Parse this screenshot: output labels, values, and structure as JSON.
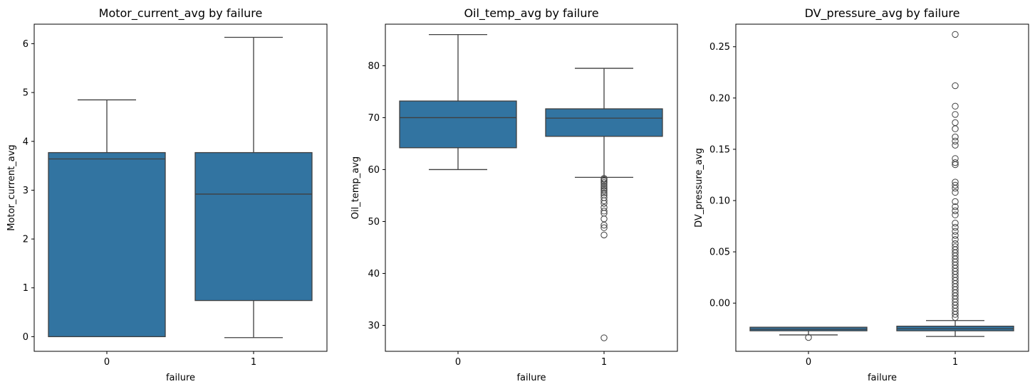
{
  "chart_data": [
    {
      "type": "box",
      "title": "Motor_current_avg by failure",
      "xlabel": "failure",
      "ylabel": "Motor_current_avg",
      "ylim": [
        -0.3,
        6.4
      ],
      "yticks": [
        0,
        1,
        2,
        3,
        4,
        5,
        6
      ],
      "ytick_labels": [
        "0",
        "1",
        "2",
        "3",
        "4",
        "5",
        "6"
      ],
      "categories": [
        "0",
        "1"
      ],
      "color": "#3274a1",
      "boxes": [
        {
          "category": "0",
          "whisker_low": 0.0,
          "q1": 0.0,
          "median": 3.64,
          "q3": 3.77,
          "whisker_high": 4.85,
          "outliers": []
        },
        {
          "category": "1",
          "whisker_low": -0.02,
          "q1": 0.74,
          "median": 2.92,
          "q3": 3.77,
          "whisker_high": 6.13,
          "outliers": []
        }
      ]
    },
    {
      "type": "box",
      "title": "Oil_temp_avg by failure",
      "xlabel": "failure",
      "ylabel": "Oil_temp_avg",
      "ylim": [
        25,
        88
      ],
      "yticks": [
        30,
        40,
        50,
        60,
        70,
        80
      ],
      "ytick_labels": [
        "30",
        "40",
        "50",
        "60",
        "70",
        "80"
      ],
      "categories": [
        "0",
        "1"
      ],
      "color": "#3274a1",
      "boxes": [
        {
          "category": "0",
          "whisker_low": 60.0,
          "q1": 64.2,
          "median": 70.0,
          "q3": 73.2,
          "whisker_high": 86.0,
          "outliers": []
        },
        {
          "category": "1",
          "whisker_low": 58.5,
          "q1": 66.4,
          "median": 69.9,
          "q3": 71.7,
          "whisker_high": 79.5,
          "outliers": [
            58.3,
            58.1,
            57.8,
            57.5,
            57.2,
            56.8,
            56.5,
            56.2,
            55.9,
            55.5,
            55.1,
            54.6,
            54.0,
            53.5,
            52.7,
            52.0,
            51.6,
            50.5,
            49.3,
            48.8,
            47.4,
            27.6
          ]
        }
      ]
    },
    {
      "type": "box",
      "title": "DV_pressure_avg by failure",
      "xlabel": "failure",
      "ylabel": "DV_pressure_avg",
      "ylim": [
        -0.047,
        0.272
      ],
      "yticks": [
        0.0,
        0.05,
        0.1,
        0.15,
        0.2,
        0.25
      ],
      "ytick_labels": [
        "0.00",
        "0.05",
        "0.10",
        "0.15",
        "0.20",
        "0.25"
      ],
      "categories": [
        "0",
        "1"
      ],
      "color": "#3274a1",
      "boxes": [
        {
          "category": "0",
          "whisker_low": -0.031,
          "q1": -0.027,
          "median": -0.0255,
          "q3": -0.0235,
          "whisker_high": -0.0235,
          "outliers": [
            -0.0335
          ]
        },
        {
          "category": "1",
          "whisker_low": -0.0325,
          "q1": -0.027,
          "median": -0.025,
          "q3": -0.0225,
          "whisker_high": -0.017,
          "outliers": [
            0.262,
            0.212,
            0.192,
            0.184,
            0.176,
            0.17,
            0.162,
            0.158,
            0.154,
            0.141,
            0.137,
            0.135,
            0.118,
            0.115,
            0.112,
            0.108,
            0.099,
            0.094,
            0.09,
            0.086,
            0.078,
            0.074,
            0.07,
            0.066,
            0.062,
            0.058,
            0.055,
            0.052,
            0.049,
            0.046,
            0.043,
            0.04,
            0.037,
            0.034,
            0.031,
            0.028,
            0.025,
            0.022,
            0.019,
            0.016,
            0.013,
            0.01,
            0.007,
            0.004,
            0.001,
            -0.002,
            -0.005,
            -0.008,
            -0.011,
            -0.014
          ]
        }
      ]
    }
  ]
}
